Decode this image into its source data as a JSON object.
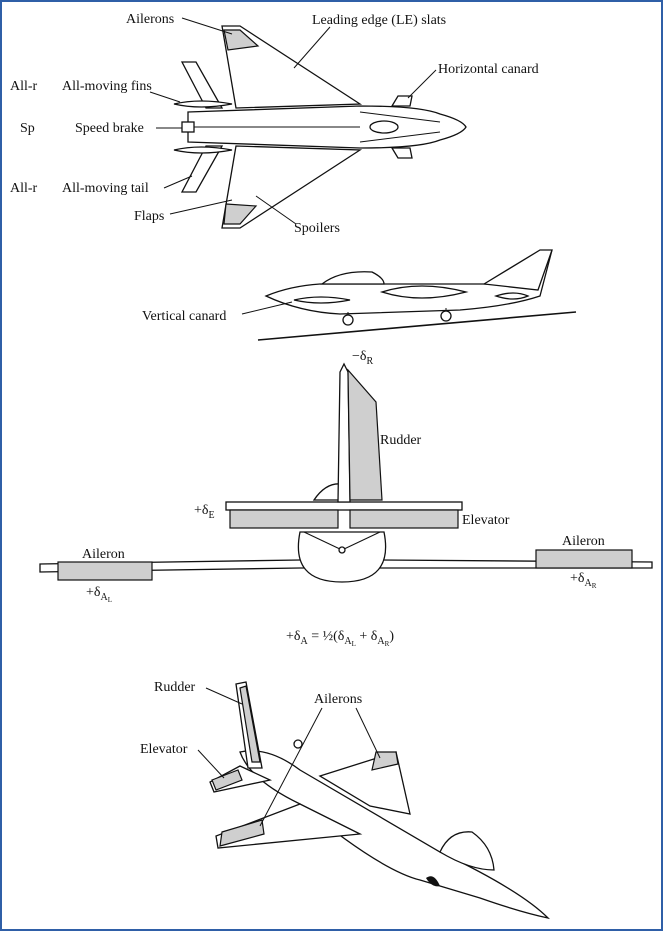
{
  "top_view": {
    "labels": {
      "ailerons": "Ailerons",
      "le_slats": "Leading edge (LE) slats",
      "horizontal_canard": "Horizontal canard",
      "all_moving_fins": "All-moving fins",
      "speed_brake": "Speed brake",
      "all_moving_tail": "All-moving tail",
      "flaps": "Flaps",
      "spoilers": "Spoilers"
    },
    "clipped_left": {
      "fins": "All-r",
      "brake": "Sp",
      "tail": "All-r"
    }
  },
  "side_view": {
    "labels": {
      "vertical_canard": "Vertical canard"
    }
  },
  "front_view": {
    "labels": {
      "minus_dr": "−δ",
      "minus_dr_sub": "R",
      "rudder": "Rudder",
      "plus_de": "+δ",
      "plus_de_sub": "E",
      "elevator": "Elevator",
      "aileron_left": "Aileron",
      "aileron_right": "Aileron",
      "plus_dal": "+δ",
      "plus_dal_sub": "A",
      "plus_dal_subsub": "L",
      "plus_dar": "+δ",
      "plus_dar_sub": "A",
      "plus_dar_subsub": "R"
    },
    "equation": {
      "lhs": "+δ",
      "lhs_sub": "A",
      "rhs_a": " = ½(δ",
      "rhs_sub1": "A",
      "rhs_subsub1": "L",
      "rhs_b": " + δ",
      "rhs_sub2": "A",
      "rhs_subsub2": "R",
      "rhs_c": ")"
    }
  },
  "iso_view": {
    "labels": {
      "rudder": "Rudder",
      "ailerons": "Ailerons",
      "elevator": "Elevator"
    }
  },
  "colors": {
    "frame": "#2f5fa7",
    "surface_fill": "#cfcfcf",
    "ink": "#111111"
  }
}
